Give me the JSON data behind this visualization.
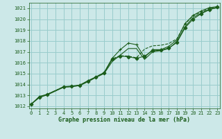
{
  "title": "Graphe pression niveau de la mer (hPa)",
  "bg_color": "#cce8e8",
  "grid_color": "#99cccc",
  "line_color": "#1a5c1a",
  "xlim": [
    -0.3,
    23.3
  ],
  "ylim": [
    1011.8,
    1021.5
  ],
  "xticks": [
    0,
    1,
    2,
    3,
    4,
    5,
    6,
    7,
    8,
    9,
    10,
    11,
    12,
    13,
    14,
    15,
    16,
    17,
    18,
    19,
    20,
    21,
    22,
    23
  ],
  "yticks": [
    1012,
    1013,
    1014,
    1015,
    1016,
    1017,
    1018,
    1019,
    1020,
    1021
  ],
  "series": [
    {
      "x": [
        0,
        1,
        2,
        4,
        5,
        6,
        7,
        8,
        9,
        10,
        11,
        12,
        13,
        14,
        15,
        16,
        17,
        18,
        19,
        20,
        21,
        22,
        23
      ],
      "y": [
        1012.2,
        1012.9,
        1013.1,
        1013.8,
        1013.85,
        1013.95,
        1014.35,
        1014.7,
        1015.1,
        1016.4,
        1017.2,
        1017.8,
        1017.65,
        1016.5,
        1017.2,
        1017.2,
        1017.5,
        1018.1,
        1019.6,
        1020.35,
        1020.75,
        1021.05,
        1021.15
      ],
      "marker": "+"
    },
    {
      "x": [
        0,
        1,
        2,
        4,
        5,
        6,
        7,
        8,
        9,
        10,
        11,
        12,
        13,
        14,
        15,
        16,
        17,
        18,
        19,
        20,
        21,
        22,
        23
      ],
      "y": [
        1012.2,
        1012.8,
        1013.05,
        1013.75,
        1013.8,
        1013.9,
        1014.25,
        1014.65,
        1015.0,
        1016.1,
        1016.7,
        1017.3,
        1017.3,
        1016.3,
        1017.0,
        1017.1,
        1017.3,
        1017.95,
        1019.3,
        1020.15,
        1020.55,
        1020.9,
        1021.05
      ],
      "marker": null
    },
    {
      "x": [
        0,
        1,
        2,
        4,
        5,
        6,
        7,
        8,
        9,
        10,
        11,
        12,
        13,
        14,
        15,
        16,
        17,
        18,
        19,
        20,
        21,
        22,
        23
      ],
      "y": [
        1012.2,
        1012.85,
        1013.1,
        1013.75,
        1013.82,
        1013.92,
        1014.3,
        1014.68,
        1015.05,
        1016.3,
        1016.6,
        1016.55,
        1016.4,
        1016.6,
        1017.1,
        1017.15,
        1017.35,
        1017.85,
        1019.2,
        1020.0,
        1020.5,
        1020.85,
        1021.1
      ],
      "marker": "D"
    },
    {
      "x": [
        0,
        1,
        2,
        4,
        5,
        6,
        7,
        8,
        9,
        10,
        11,
        12,
        13,
        14,
        15,
        16,
        17,
        18,
        19,
        20,
        21,
        22,
        23
      ],
      "y": [
        1012.2,
        1012.85,
        1013.1,
        1013.78,
        1013.82,
        1013.92,
        1014.3,
        1014.68,
        1015.05,
        1016.35,
        1016.65,
        1016.6,
        1016.45,
        1017.25,
        1017.55,
        1017.6,
        1017.75,
        1018.2,
        1019.55,
        1020.3,
        1020.65,
        1020.98,
        1021.13
      ],
      "marker": null,
      "linestyle": "--"
    }
  ]
}
